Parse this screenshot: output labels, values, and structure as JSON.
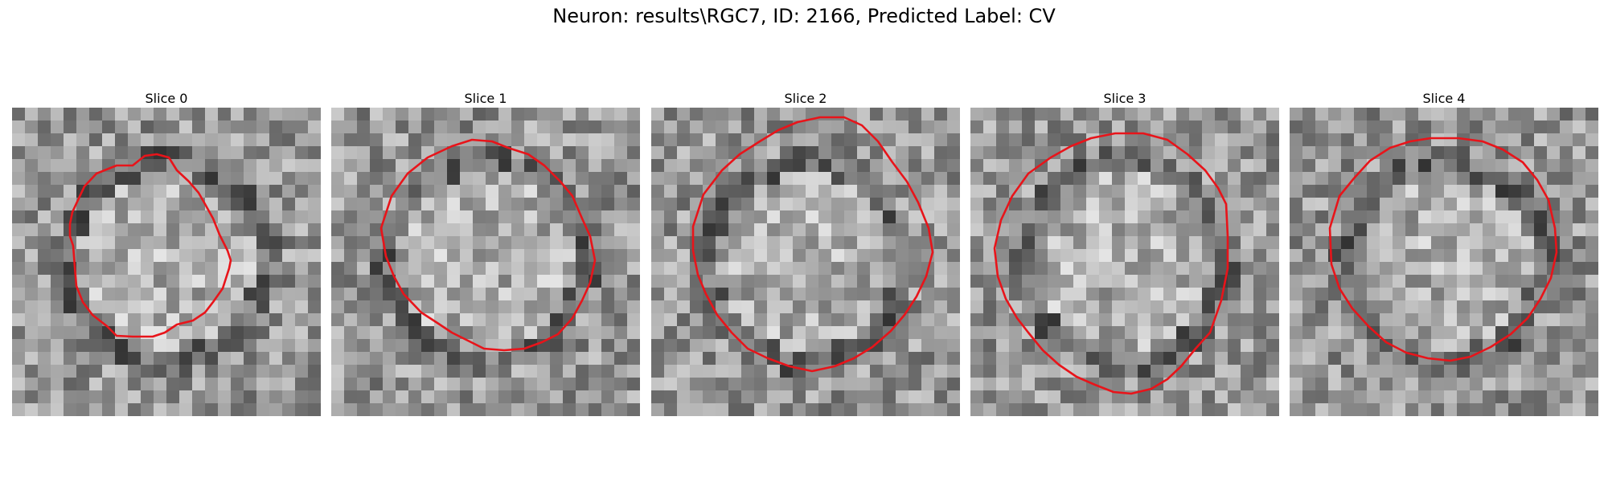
{
  "figure": {
    "suptitle": "Neuron: results\\RGC7, ID: 2166, Predicted Label: CV",
    "contour_color": "#e8141a",
    "colormap": "gray"
  },
  "panels": [
    {
      "title": "Slice 0"
    },
    {
      "title": "Slice 1"
    },
    {
      "title": "Slice 2"
    },
    {
      "title": "Slice 3"
    },
    {
      "title": "Slice 4"
    }
  ]
}
